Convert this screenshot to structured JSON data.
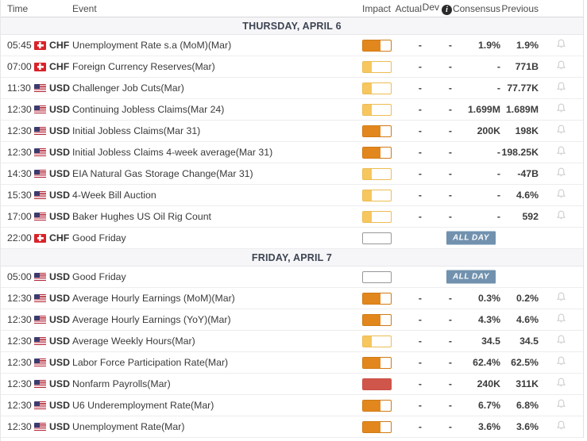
{
  "header": {
    "columns": {
      "time": "Time",
      "event": "Event",
      "impact": "Impact",
      "actual": "Actual",
      "dev": "Dev",
      "consensus": "Consensus",
      "previous": "Previous"
    },
    "info_icon_glyph": "i"
  },
  "all_day_label": "ALL DAY",
  "colors": {
    "impact_high_fill": "#d0554b",
    "impact_high_border": "#c84f45",
    "impact_medium_fill": "#e2871d",
    "impact_medium_border": "#d07a15",
    "impact_low_fill": "#f6c65f",
    "impact_low_border": "#edbc52",
    "all_day_bg": "#7191ae",
    "section_bg": "#f6f6f8",
    "chf_flag_red": "#d8232a",
    "usd_canton_blue": "#3c3b6e"
  },
  "sections": [
    {
      "title": "THURSDAY, APRIL 6",
      "rows": [
        {
          "time": "05:45",
          "currency": "CHF",
          "event": "Unemployment Rate s.a (MoM)(Mar)",
          "impact": "medium",
          "actual": "-",
          "dev": "-",
          "consensus": "1.9%",
          "previous": "1.9%",
          "bell": true
        },
        {
          "time": "07:00",
          "currency": "CHF",
          "event": "Foreign Currency Reserves(Mar)",
          "impact": "low",
          "actual": "-",
          "dev": "-",
          "consensus": "-",
          "previous": "771B",
          "bell": true
        },
        {
          "time": "11:30",
          "currency": "USD",
          "event": "Challenger Job Cuts(Mar)",
          "impact": "low",
          "actual": "-",
          "dev": "-",
          "consensus": "-",
          "previous": "77.77K",
          "bell": true
        },
        {
          "time": "12:30",
          "currency": "USD",
          "event": "Continuing Jobless Claims(Mar 24)",
          "impact": "low",
          "actual": "-",
          "dev": "-",
          "consensus": "1.699M",
          "previous": "1.689M",
          "bell": true
        },
        {
          "time": "12:30",
          "currency": "USD",
          "event": "Initial Jobless Claims(Mar 31)",
          "impact": "medium",
          "actual": "-",
          "dev": "-",
          "consensus": "200K",
          "previous": "198K",
          "bell": true
        },
        {
          "time": "12:30",
          "currency": "USD",
          "event": "Initial Jobless Claims 4-week average(Mar 31)",
          "impact": "medium",
          "actual": "-",
          "dev": "-",
          "consensus": "-",
          "previous": "198.25K",
          "bell": true
        },
        {
          "time": "14:30",
          "currency": "USD",
          "event": "EIA Natural Gas Storage Change(Mar 31)",
          "impact": "low",
          "actual": "-",
          "dev": "-",
          "consensus": "-",
          "previous": "-47B",
          "bell": true
        },
        {
          "time": "15:30",
          "currency": "USD",
          "event": "4-Week Bill Auction",
          "impact": "low",
          "actual": "-",
          "dev": "-",
          "consensus": "-",
          "previous": "4.6%",
          "bell": true
        },
        {
          "time": "17:00",
          "currency": "USD",
          "event": "Baker Hughes US Oil Rig Count",
          "impact": "low",
          "actual": "-",
          "dev": "-",
          "consensus": "-",
          "previous": "592",
          "bell": true
        },
        {
          "time": "22:00",
          "currency": "CHF",
          "event": "Good Friday",
          "impact": "none",
          "actual": "",
          "dev": "",
          "consensus": "",
          "previous": "",
          "all_day": true,
          "bell": false
        }
      ]
    },
    {
      "title": "FRIDAY, APRIL 7",
      "rows": [
        {
          "time": "05:00",
          "currency": "USD",
          "event": "Good Friday",
          "impact": "none",
          "actual": "",
          "dev": "",
          "consensus": "",
          "previous": "",
          "all_day": true,
          "bell": false
        },
        {
          "time": "12:30",
          "currency": "USD",
          "event": "Average Hourly Earnings (MoM)(Mar)",
          "impact": "medium",
          "actual": "-",
          "dev": "-",
          "consensus": "0.3%",
          "previous": "0.2%",
          "bell": true
        },
        {
          "time": "12:30",
          "currency": "USD",
          "event": "Average Hourly Earnings (YoY)(Mar)",
          "impact": "medium",
          "actual": "-",
          "dev": "-",
          "consensus": "4.3%",
          "previous": "4.6%",
          "bell": true
        },
        {
          "time": "12:30",
          "currency": "USD",
          "event": "Average Weekly Hours(Mar)",
          "impact": "low",
          "actual": "-",
          "dev": "-",
          "consensus": "34.5",
          "previous": "34.5",
          "bell": true
        },
        {
          "time": "12:30",
          "currency": "USD",
          "event": "Labor Force Participation Rate(Mar)",
          "impact": "medium",
          "actual": "-",
          "dev": "-",
          "consensus": "62.4%",
          "previous": "62.5%",
          "bell": true
        },
        {
          "time": "12:30",
          "currency": "USD",
          "event": "Nonfarm Payrolls(Mar)",
          "impact": "high",
          "actual": "-",
          "dev": "-",
          "consensus": "240K",
          "previous": "311K",
          "bell": true
        },
        {
          "time": "12:30",
          "currency": "USD",
          "event": "U6 Underemployment Rate(Mar)",
          "impact": "medium",
          "actual": "-",
          "dev": "-",
          "consensus": "6.7%",
          "previous": "6.8%",
          "bell": true
        },
        {
          "time": "12:30",
          "currency": "USD",
          "event": "Unemployment Rate(Mar)",
          "impact": "medium",
          "actual": "-",
          "dev": "-",
          "consensus": "3.6%",
          "previous": "3.6%",
          "bell": true
        }
      ]
    }
  ]
}
